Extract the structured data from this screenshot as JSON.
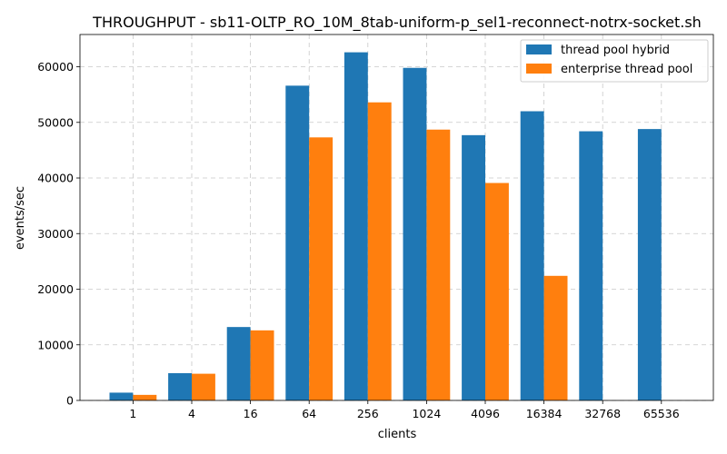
{
  "chart_data": {
    "type": "bar",
    "title": "THROUGHPUT - sb11-OLTP_RO_10M_8tab-uniform-p_sel1-reconnect-notrx-socket.sh",
    "xlabel": "clients",
    "ylabel": "events/sec",
    "categories": [
      "1",
      "4",
      "16",
      "64",
      "256",
      "1024",
      "4096",
      "16384",
      "32768",
      "65536"
    ],
    "series": [
      {
        "name": "thread pool hybrid",
        "color": "#1f77b4",
        "values": [
          1400,
          4900,
          13200,
          56600,
          62600,
          59800,
          47700,
          52000,
          48400,
          48800
        ]
      },
      {
        "name": "enterprise thread pool",
        "color": "#ff7f0e",
        "values": [
          1000,
          4800,
          12600,
          47300,
          53600,
          48700,
          39100,
          22400,
          null,
          null
        ]
      }
    ],
    "ylim": [
      0,
      65800
    ],
    "yticks": [
      0,
      10000,
      20000,
      30000,
      40000,
      50000,
      60000
    ],
    "grid": true,
    "legend_position": "top-right"
  }
}
